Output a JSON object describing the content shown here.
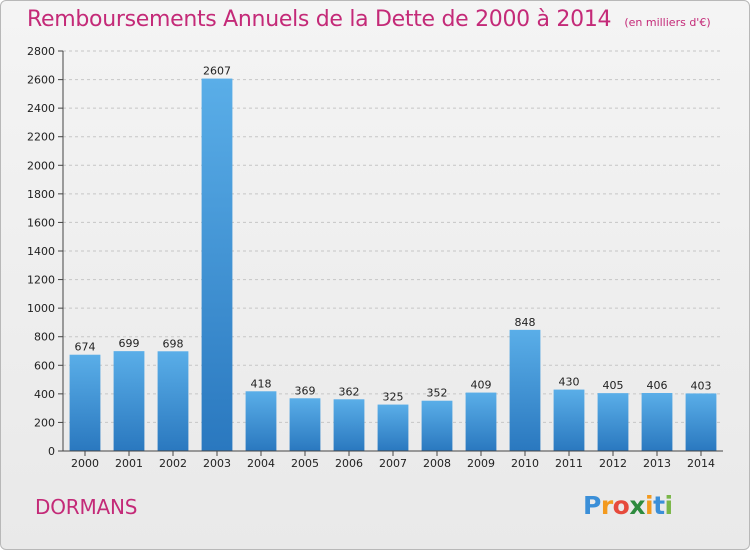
{
  "chart_data": {
    "type": "bar",
    "title": "Remboursements Annuels de la Dette de 2000 à 2014",
    "subtitle": "(en milliers d'€)",
    "categories": [
      "2000",
      "2001",
      "2002",
      "2003",
      "2004",
      "2005",
      "2006",
      "2007",
      "2008",
      "2009",
      "2010",
      "2011",
      "2012",
      "2013",
      "2014"
    ],
    "values": [
      674,
      699,
      698,
      2607,
      418,
      369,
      362,
      325,
      352,
      409,
      848,
      430,
      405,
      406,
      403
    ],
    "ylim": [
      0,
      2800
    ],
    "yticks": [
      0,
      200,
      400,
      600,
      800,
      1000,
      1200,
      1400,
      1600,
      1800,
      2000,
      2200,
      2400,
      2600,
      2800
    ],
    "grid": true,
    "bar_color": "#3a93d8"
  },
  "commune": "DORMANS",
  "logo": {
    "letters": [
      "P",
      "r",
      "o",
      "x",
      "i",
      "t",
      "i"
    ],
    "colors": [
      "#3b8fd8",
      "#f39a1e",
      "#e64a3c",
      "#2e8b3e",
      "#f39a1e",
      "#3b8fd8",
      "#7ab648"
    ]
  },
  "colors": {
    "title": "#c42a78",
    "bar": "#3a93d8"
  }
}
